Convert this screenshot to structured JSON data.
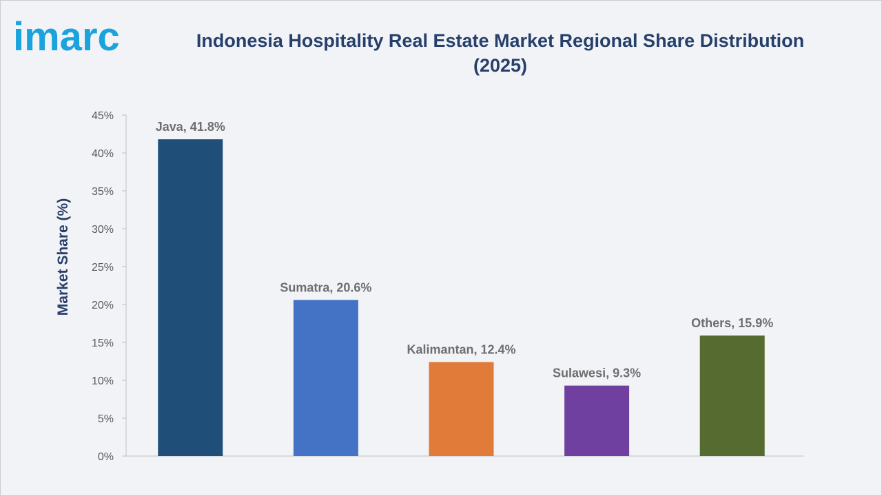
{
  "brand": {
    "logo_text": "imarc",
    "logo_color": "#1aa3dc"
  },
  "chart_data": {
    "type": "bar",
    "title": "Indonesia Hospitality Real Estate Market Regional Share Distribution (2025)",
    "title_lines": [
      "Indonesia Hospitality Real Estate Market Regional Share Distribution",
      "(2025)"
    ],
    "xlabel": "",
    "ylabel": "Market Share (%)",
    "ylim": [
      0,
      45
    ],
    "ytick_step": 5,
    "ytick_suffix": "%",
    "grid": false,
    "legend": "none",
    "categories": [
      "Java",
      "Sumatra",
      "Kalimantan",
      "Sulawesi",
      "Others"
    ],
    "values": [
      41.8,
      20.6,
      12.4,
      9.3,
      15.9
    ],
    "data_labels": [
      "Java, 41.8%",
      "Sumatra, 20.6%",
      "Kalimantan, 12.4%",
      "Sulawesi, 9.3%",
      "Others, 15.9%"
    ],
    "colors": [
      "#1f4e79",
      "#4472c4",
      "#e07b39",
      "#7040a0",
      "#556b2f"
    ]
  }
}
